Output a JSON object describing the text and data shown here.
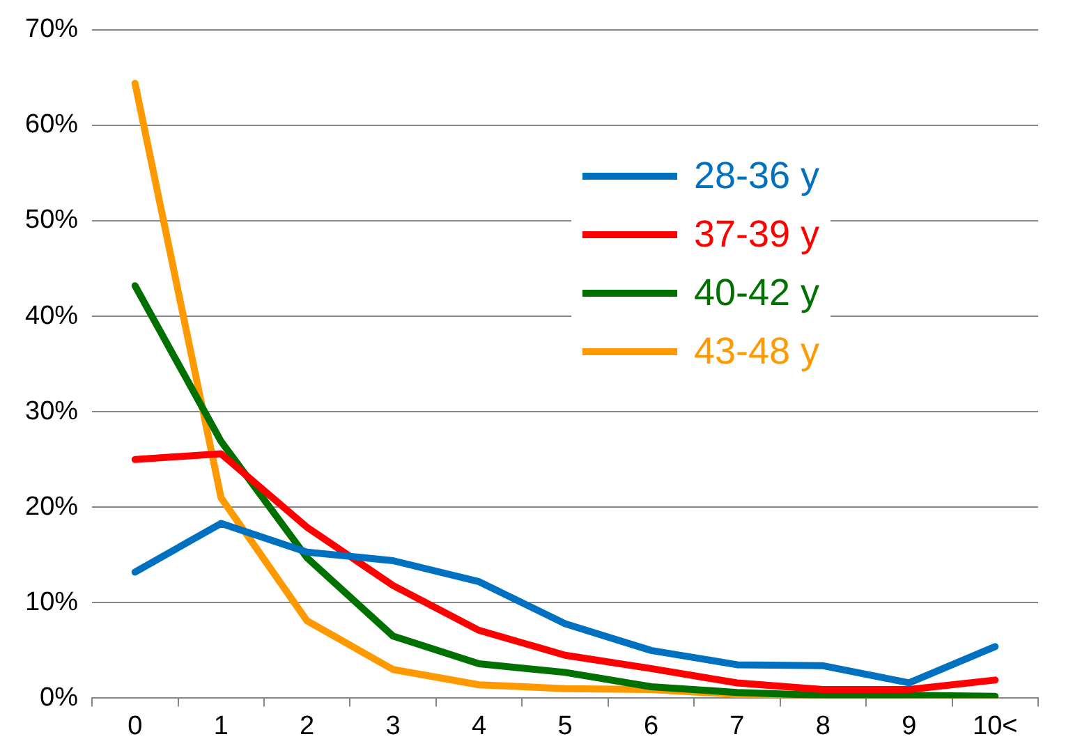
{
  "chart_data": {
    "type": "line",
    "categories": [
      "0",
      "1",
      "2",
      "3",
      "4",
      "5",
      "6",
      "7",
      "8",
      "9",
      "10<"
    ],
    "series": [
      {
        "name": "28-36 y",
        "color": "#0070c0",
        "values": [
          13.2,
          18.3,
          15.3,
          14.4,
          12.2,
          7.8,
          5.0,
          3.5,
          3.4,
          1.6,
          5.4
        ]
      },
      {
        "name": "37-39 y",
        "color": "#ff0000",
        "values": [
          25.0,
          25.6,
          17.9,
          11.8,
          7.1,
          4.5,
          3.1,
          1.6,
          0.9,
          0.9,
          1.9
        ]
      },
      {
        "name": "40-42 y",
        "color": "#007000",
        "values": [
          43.2,
          26.9,
          14.7,
          6.5,
          3.6,
          2.7,
          1.2,
          0.6,
          0.3,
          0.3,
          0.2
        ]
      },
      {
        "name": "43-48 y",
        "color": "#ff9900",
        "values": [
          64.4,
          21.0,
          8.1,
          3.0,
          1.4,
          1.0,
          0.9,
          0.4,
          0.3,
          0.2,
          0.1
        ]
      }
    ],
    "ylim": [
      0,
      70
    ],
    "yticks": [
      {
        "value": 0,
        "label": "0%"
      },
      {
        "value": 10,
        "label": "10%"
      },
      {
        "value": 20,
        "label": "20%"
      },
      {
        "value": 30,
        "label": "30%"
      },
      {
        "value": 40,
        "label": "40%"
      },
      {
        "value": 50,
        "label": "50%"
      },
      {
        "value": 60,
        "label": "60%"
      },
      {
        "value": 70,
        "label": "70%"
      }
    ],
    "grid": "y",
    "legend": "top right",
    "marker": "none",
    "line_style": "solid"
  }
}
